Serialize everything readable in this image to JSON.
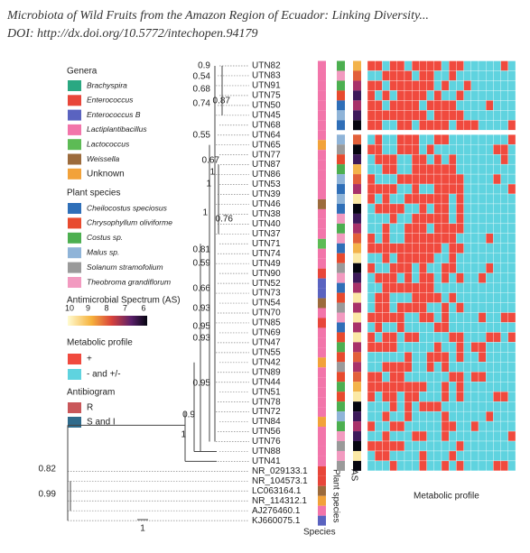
{
  "header": {
    "title": "Microbiota of Wild Fruits from the Amazon Region of Ecuador: Linking Diversity...",
    "doi": "DOI: http://dx.doi.org/10.5772/intechopen.94179"
  },
  "legend": {
    "genera": {
      "title": "Genera",
      "items": [
        {
          "label": "Brachyspira",
          "color": "#2aa882"
        },
        {
          "label": "Enterococcus",
          "color": "#e8463a"
        },
        {
          "label": "Enterococcus B",
          "color": "#5a63c0"
        },
        {
          "label": "Lactiplantibacillus",
          "color": "#f275aa"
        },
        {
          "label": "Lactococcus",
          "color": "#5dbb55"
        },
        {
          "label": "Weissella",
          "color": "#9c6b3c"
        },
        {
          "label": "Unknown",
          "color": "#f2a23a"
        }
      ]
    },
    "plant_species": {
      "title": "Plant species",
      "items": [
        {
          "label": "Cheilocostus speciosus",
          "color": "#2f6fb8"
        },
        {
          "label": "Chrysophyllum oliviforme",
          "color": "#e84a2e"
        },
        {
          "label": "Costus sp.",
          "color": "#4caf50"
        },
        {
          "label": "Malus sp.",
          "color": "#8fb4d8"
        },
        {
          "label": "Solanum stramofolium",
          "color": "#9a9a9a"
        },
        {
          "label": "Theobroma grandiflorum",
          "color": "#f29ac0"
        }
      ]
    },
    "antimicrobial_spectrum": {
      "title": "Antimicrobial Spectrum (AS)",
      "ticks": [
        "10",
        "9",
        "8",
        "7",
        "6"
      ]
    },
    "metabolic_profile": {
      "title": "Metabolic profile",
      "items": [
        {
          "label": "+",
          "color": "#f04a3e"
        },
        {
          "label": "- and +/-",
          "color": "#5fd3df"
        }
      ]
    },
    "antibiogram": {
      "title": "Antibiogram",
      "items": [
        {
          "label": "R",
          "color": "#c9575a"
        },
        {
          "label": "S and I",
          "color": "#2f6b8c"
        }
      ]
    }
  },
  "tree": {
    "leaves": [
      "UTN82",
      "UTN83",
      "UTN91",
      "UTN75",
      "UTN50",
      "UTN45",
      "UTN68",
      "UTN64",
      "UTN65",
      "UTN77",
      "UTN87",
      "UTN86",
      "UTN53",
      "UTN39",
      "UTN46",
      "UTN38",
      "UTN40",
      "UTN37",
      "UTN71",
      "UTN74",
      "UTN49",
      "UTN90",
      "UTN52",
      "UTN73",
      "UTN54",
      "UTN70",
      "UTN85",
      "UTN69",
      "UTN47",
      "UTN55",
      "UTN42",
      "UTN89",
      "UTN44",
      "UTN51",
      "UTN78",
      "UTN72",
      "UTN84",
      "UTN56",
      "UTN76",
      "UTN88",
      "UTN41",
      "NR_029133.1",
      "NR_104573.1",
      "LC063164.1",
      "NR_114312.1",
      "AJ276460.1",
      "KJ660075.1"
    ],
    "support": [
      "0.9",
      "0.54",
      "0.68",
      "0.74",
      "0.87",
      "0.55",
      "0.67",
      "1",
      "1",
      "1",
      "0.76",
      "0.81",
      "0.59",
      "0.66",
      "0.93",
      "0.95",
      "0.93",
      "0.95",
      "0.9",
      "1",
      "0.82",
      "0.99"
    ],
    "scale": "1"
  },
  "columns": {
    "species": "Species",
    "plant_species": "Plant species",
    "as": "AS",
    "metabolic_profile": "Metabolic profile"
  }
}
